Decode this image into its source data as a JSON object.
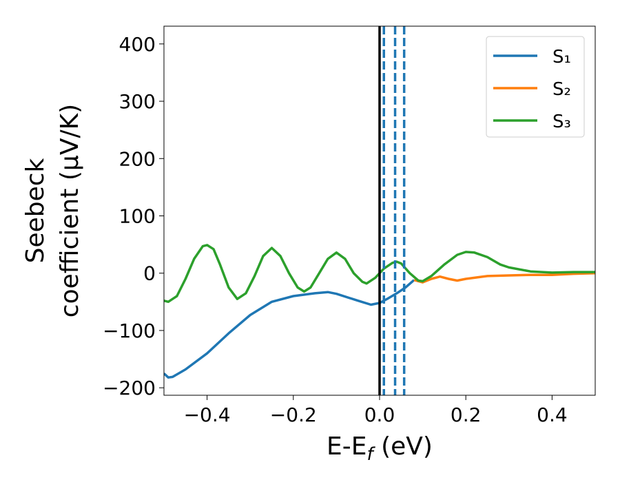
{
  "chart_data": {
    "type": "line",
    "x_label": {
      "main": "E-E",
      "sub": "f",
      "tail": " (eV)"
    },
    "y_label": [
      "Seebeck",
      "coefficient  (μV/K)"
    ],
    "xlim": [
      -0.5,
      0.5
    ],
    "ylim": [
      -213,
      431
    ],
    "xticks": [
      {
        "value": -0.4,
        "label": "−0.4"
      },
      {
        "value": -0.2,
        "label": "−0.2"
      },
      {
        "value": 0.0,
        "label": "0.0"
      },
      {
        "value": 0.2,
        "label": "0.2"
      },
      {
        "value": 0.4,
        "label": "0.4"
      }
    ],
    "yticks": [
      {
        "value": -200,
        "label": "−200"
      },
      {
        "value": -100,
        "label": "−100"
      },
      0,
      100,
      200,
      300,
      400
    ],
    "grid": false,
    "legend": "upper right",
    "vlines": [
      {
        "x": 0.0,
        "color": "#000000",
        "style": "solid"
      },
      {
        "x": 0.01,
        "color": "#1f77b4",
        "style": "dashed"
      },
      {
        "x": 0.036,
        "color": "#1f77b4",
        "style": "dashed"
      },
      {
        "x": 0.057,
        "color": "#1f77b4",
        "style": "dashed"
      }
    ],
    "series": [
      {
        "name": "S₁",
        "color": "#1f77b4",
        "x": [
          -0.5,
          -0.49,
          -0.48,
          -0.45,
          -0.4,
          -0.35,
          -0.3,
          -0.25,
          -0.2,
          -0.15,
          -0.12,
          -0.1,
          -0.05,
          -0.02,
          0.0,
          0.02,
          0.04,
          0.06,
          0.08
        ],
        "values": [
          -175,
          -182,
          -181,
          -168,
          -140,
          -105,
          -73,
          -50,
          -40,
          -35,
          -33,
          -36,
          -48,
          -55,
          -52,
          -44,
          -35,
          -25,
          -12
        ]
      },
      {
        "name": "S₂",
        "color": "#ff7f0e",
        "x": [
          0.08,
          0.1,
          0.12,
          0.14,
          0.16,
          0.18,
          0.2,
          0.25,
          0.3,
          0.35,
          0.4,
          0.45,
          0.5
        ],
        "values": [
          -12,
          -16,
          -10,
          -6,
          -10,
          -13,
          -10,
          -5,
          -4,
          -3,
          -3,
          -1,
          0
        ]
      },
      {
        "name": "S₃",
        "color": "#2ca02c",
        "x": [
          -0.5,
          -0.49,
          -0.47,
          -0.45,
          -0.43,
          -0.41,
          -0.4,
          -0.385,
          -0.37,
          -0.35,
          -0.33,
          -0.31,
          -0.29,
          -0.27,
          -0.25,
          -0.23,
          -0.21,
          -0.19,
          -0.175,
          -0.16,
          -0.14,
          -0.12,
          -0.1,
          -0.08,
          -0.06,
          -0.04,
          -0.03,
          -0.01,
          0.01,
          0.03,
          0.04,
          0.05,
          0.07,
          0.09,
          0.1,
          0.12,
          0.15,
          0.18,
          0.2,
          0.22,
          0.25,
          0.28,
          0.3,
          0.35,
          0.4,
          0.45,
          0.5
        ],
        "values": [
          -48,
          -50,
          -40,
          -10,
          25,
          47,
          49,
          42,
          15,
          -25,
          -45,
          -35,
          -5,
          30,
          44,
          30,
          0,
          -25,
          -32,
          -25,
          0,
          25,
          36,
          25,
          0,
          -15,
          -18,
          -8,
          8,
          18,
          20,
          17,
          0,
          -13,
          -14,
          -5,
          15,
          32,
          37,
          36,
          28,
          15,
          10,
          3,
          1,
          2,
          2
        ]
      }
    ]
  }
}
